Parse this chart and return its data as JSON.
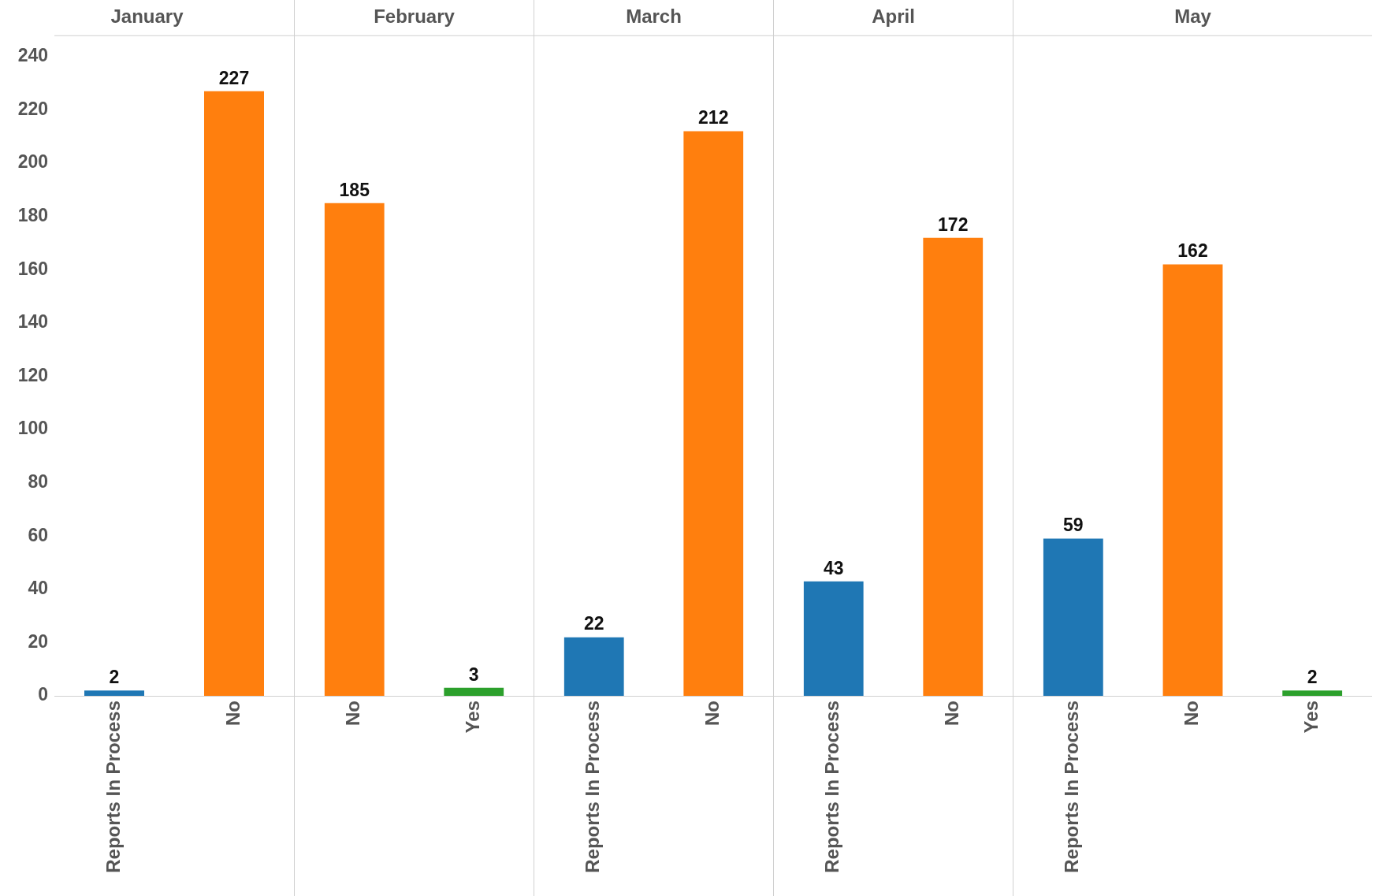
{
  "chart_data": [
    {
      "type": "bar",
      "title": "January",
      "categories": [
        "Reports In Process",
        "No"
      ],
      "values": [
        2,
        227
      ],
      "colors": [
        "#1f77b4",
        "#ff7f0e"
      ],
      "ylim": [
        0,
        248
      ],
      "yticks": [
        0,
        20,
        40,
        60,
        80,
        100,
        120,
        140,
        160,
        180,
        200,
        220,
        240
      ],
      "data_labels": true,
      "grid": false
    },
    {
      "type": "bar",
      "title": "February",
      "categories": [
        "No",
        "Yes"
      ],
      "values": [
        185,
        3
      ],
      "colors": [
        "#ff7f0e",
        "#2ca02c"
      ],
      "ylim": [
        0,
        248
      ],
      "yticks": [
        0,
        20,
        40,
        60,
        80,
        100,
        120,
        140,
        160,
        180,
        200,
        220,
        240
      ],
      "data_labels": true,
      "grid": false,
      "tick_labels": "x"
    },
    {
      "type": "bar",
      "title": "March",
      "categories": [
        "Reports In Process",
        "No"
      ],
      "values": [
        22,
        212
      ],
      "colors": [
        "#1f77b4",
        "#ff7f0e"
      ],
      "ylim": [
        0,
        248
      ],
      "yticks": [
        0,
        20,
        40,
        60,
        80,
        100,
        120,
        140,
        160,
        180,
        200,
        220,
        240
      ],
      "data_labels": true,
      "grid": false,
      "tick_labels": "x"
    },
    {
      "type": "bar",
      "title": "April",
      "categories": [
        "Reports In Process",
        "No"
      ],
      "values": [
        43,
        172
      ],
      "colors": [
        "#1f77b4",
        "#ff7f0e"
      ],
      "ylim": [
        0,
        248
      ],
      "yticks": [
        0,
        20,
        40,
        60,
        80,
        100,
        120,
        140,
        160,
        180,
        200,
        220,
        240
      ],
      "data_labels": true,
      "grid": false,
      "tick_labels": "x"
    },
    {
      "type": "bar",
      "title": "May",
      "categories": [
        "Reports In Process",
        "No",
        "Yes"
      ],
      "values": [
        59,
        162,
        2
      ],
      "colors": [
        "#1f77b4",
        "#ff7f0e",
        "#2ca02c"
      ],
      "ylim": [
        0,
        248
      ],
      "yticks": [
        0,
        20,
        40,
        60,
        80,
        100,
        120,
        140,
        160,
        180,
        200,
        220,
        240
      ],
      "data_labels": true,
      "grid": false,
      "tick_labels": "x"
    }
  ]
}
